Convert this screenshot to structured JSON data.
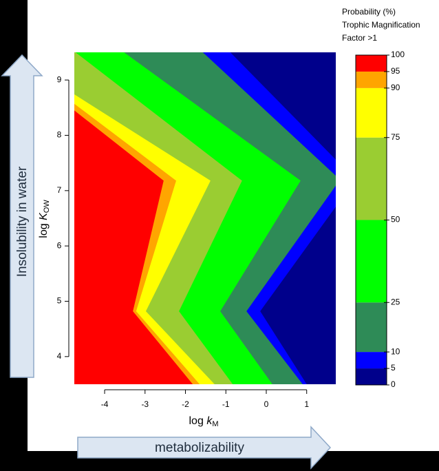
{
  "chart_data": {
    "type": "contour",
    "xlim": [
      -4.75,
      1.72
    ],
    "ylim": [
      3.5,
      9.5
    ],
    "xticks": [
      -4,
      -3,
      -2,
      -1,
      0,
      1
    ],
    "yticks": [
      4,
      5,
      6,
      7,
      8,
      9
    ],
    "xlabel": "log",
    "xlabel_var": "k",
    "xlabel_sub": "M",
    "ylabel": "log",
    "ylabel_var": "K",
    "ylabel_sub": "OW",
    "colorbar_title": [
      "Probability (%)",
      "Trophic Magnification",
      "Factor >1"
    ],
    "colorbar_lim": [
      0,
      100
    ],
    "colorbar_ticks": [
      100,
      95,
      90,
      75,
      50,
      25,
      10,
      5,
      0
    ],
    "bands": [
      {
        "from": 0,
        "to": 5,
        "color": "#00008b"
      },
      {
        "from": 5,
        "to": 10,
        "color": "#0000ff",
        "boundary_x": [
          -0.89,
          1.72,
          1.72,
          -0.15,
          1.0
        ],
        "boundary_y": [
          9.5,
          7.56,
          6.71,
          4.82,
          3.5
        ]
      },
      {
        "from": 10,
        "to": 25,
        "color": "#2e8b57",
        "boundary_x": [
          -1.57,
          1.72,
          1.72,
          -0.49,
          0.9
        ],
        "boundary_y": [
          9.5,
          7.27,
          7.09,
          4.82,
          3.5
        ]
      },
      {
        "from": 25,
        "to": 50,
        "color": "#00ff00",
        "boundary_x": [
          -3.52,
          0.85,
          -1.14,
          0.15
        ],
        "boundary_y": [
          9.5,
          7.18,
          4.82,
          3.5
        ]
      },
      {
        "from": 50,
        "to": 75,
        "color": "#9acd32",
        "boundary_x": [
          -4.72,
          -0.6,
          -2.16,
          -0.83
        ],
        "boundary_y": [
          9.5,
          7.18,
          4.82,
          3.5
        ]
      },
      {
        "from": 75,
        "to": 90,
        "color": "#ffff00",
        "boundary_x": [
          -4.75,
          -1.38,
          -2.98,
          -1.28
        ],
        "boundary_y": [
          8.74,
          7.18,
          4.82,
          3.5
        ]
      },
      {
        "from": 90,
        "to": 95,
        "color": "#ffa500",
        "boundary_x": [
          -4.75,
          -2.23,
          -3.22,
          -1.65
        ],
        "boundary_y": [
          8.57,
          7.18,
          4.82,
          3.5
        ]
      },
      {
        "from": 95,
        "to": 100,
        "color": "#ff0000",
        "boundary_x": [
          -4.75,
          -2.54,
          -3.3,
          -1.82
        ],
        "boundary_y": [
          8.45,
          7.18,
          4.82,
          3.5
        ]
      }
    ],
    "annotations": [
      "Insolubility in water",
      "metabolizability"
    ]
  }
}
